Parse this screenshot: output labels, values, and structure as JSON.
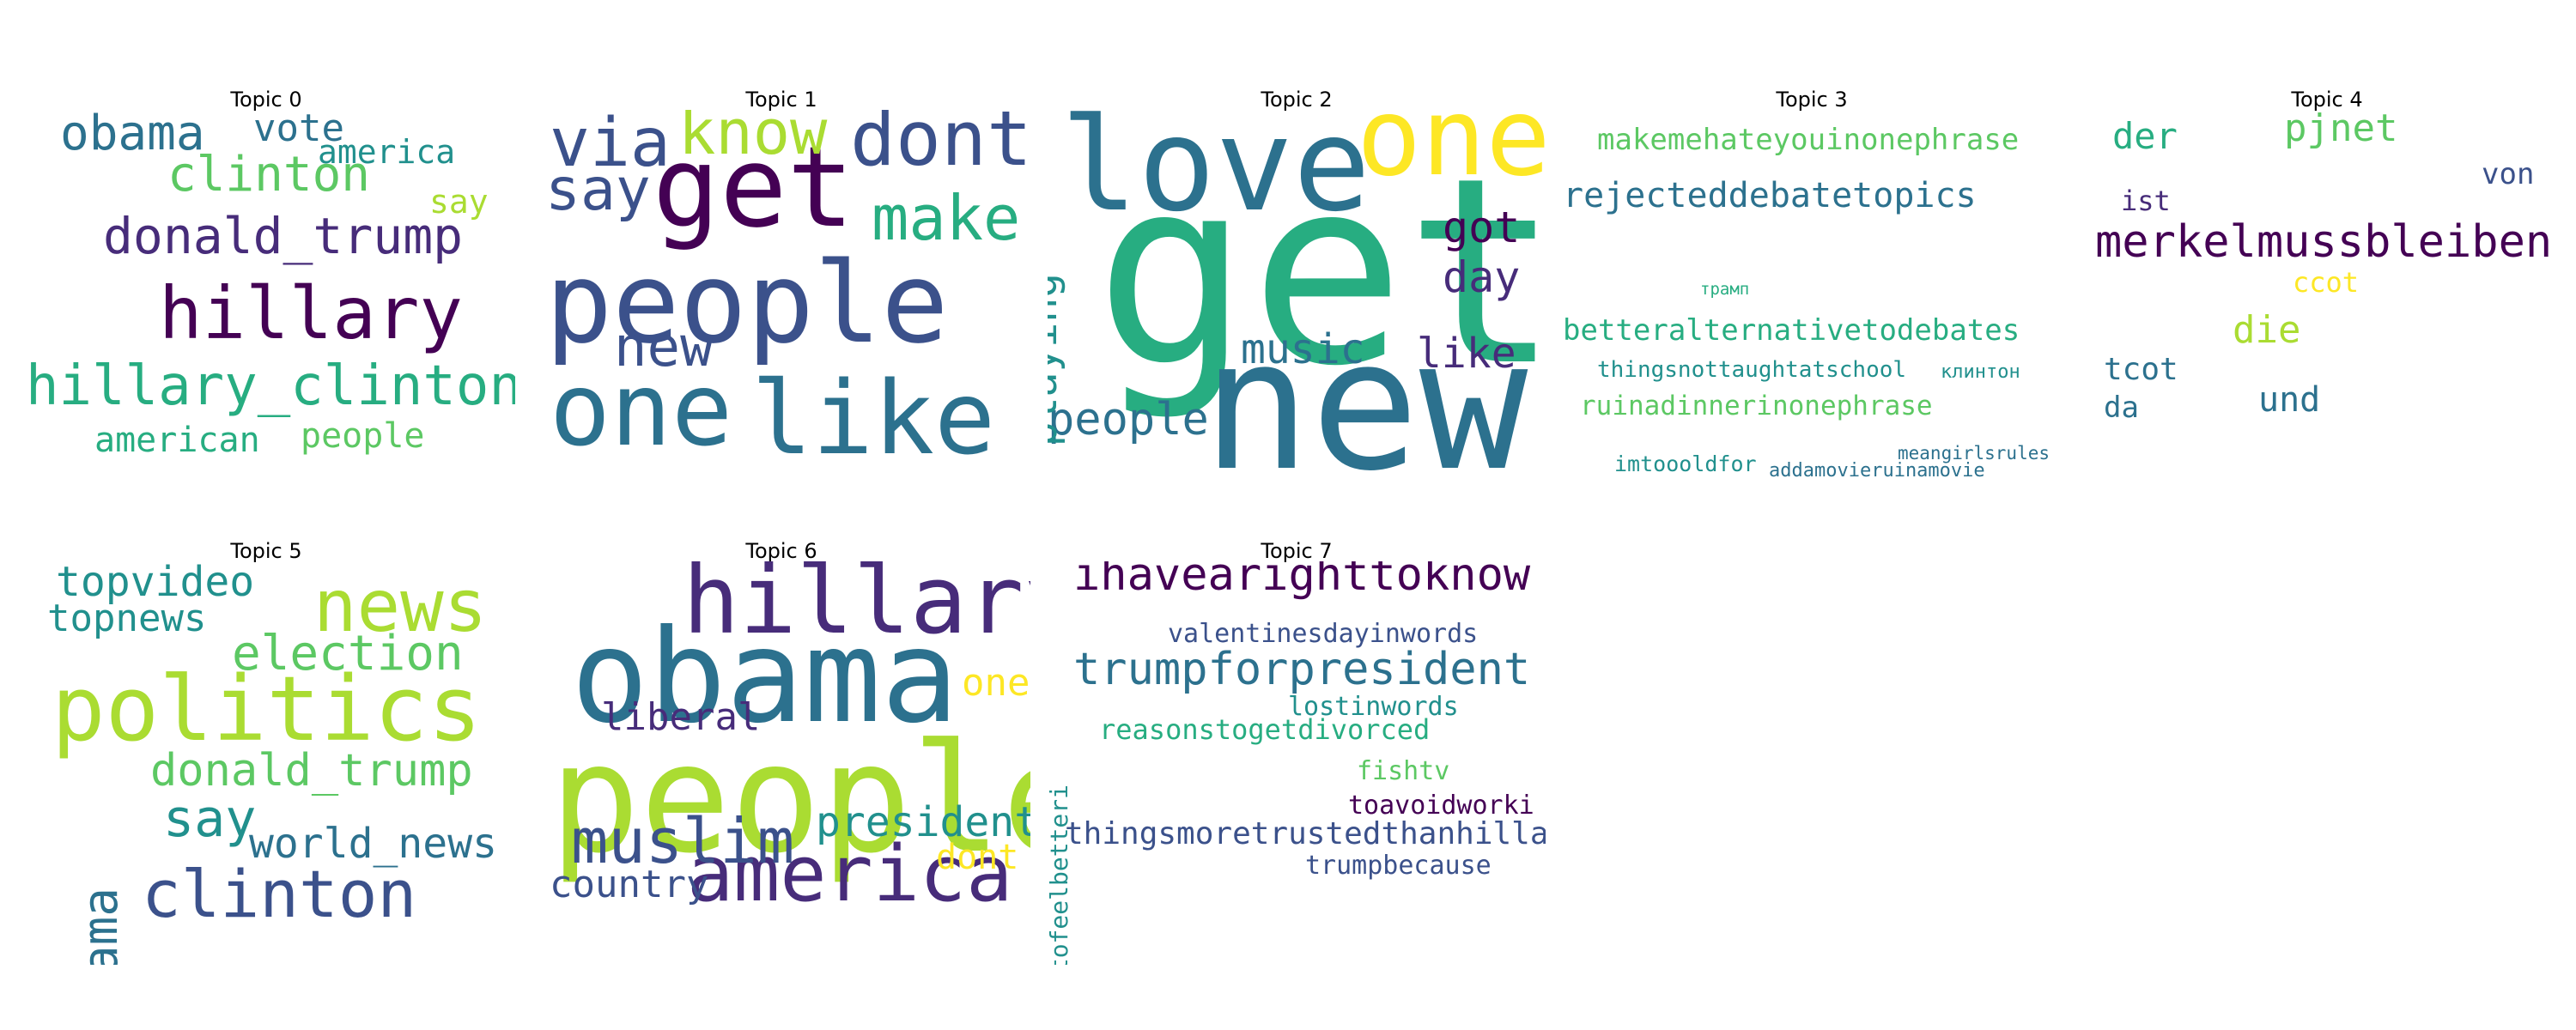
{
  "palette": [
    "#440154",
    "#472c7a",
    "#3b518b",
    "#2c718e",
    "#21908d",
    "#27ad81",
    "#5cc863",
    "#aadc32",
    "#fde725"
  ],
  "chart_data": {
    "type": "wordcloud",
    "panels": [
      {
        "title": "Topic 0",
        "words": [
          {
            "text": "hillary",
            "weight": 1.0
          },
          {
            "text": "hillary_clinton",
            "weight": 0.85
          },
          {
            "text": "donald_trump",
            "weight": 0.75
          },
          {
            "text": "clinton",
            "weight": 0.72
          },
          {
            "text": "obama",
            "weight": 0.68
          },
          {
            "text": "vote",
            "weight": 0.55
          },
          {
            "text": "american",
            "weight": 0.5
          },
          {
            "text": "people",
            "weight": 0.5
          },
          {
            "text": "america",
            "weight": 0.48
          },
          {
            "text": "say",
            "weight": 0.45
          }
        ]
      },
      {
        "title": "Topic 1",
        "words": [
          {
            "text": "people",
            "weight": 1.0
          },
          {
            "text": "get",
            "weight": 0.95
          },
          {
            "text": "one",
            "weight": 0.9
          },
          {
            "text": "like",
            "weight": 0.9
          },
          {
            "text": "dont",
            "weight": 0.7
          },
          {
            "text": "via",
            "weight": 0.62
          },
          {
            "text": "know",
            "weight": 0.58
          },
          {
            "text": "make",
            "weight": 0.55
          },
          {
            "text": "say",
            "weight": 0.52
          },
          {
            "text": "new",
            "weight": 0.5
          }
        ]
      },
      {
        "title": "Topic 2",
        "words": [
          {
            "text": "get",
            "weight": 1.0
          },
          {
            "text": "new",
            "weight": 0.95
          },
          {
            "text": "love",
            "weight": 0.7
          },
          {
            "text": "one",
            "weight": 0.68
          },
          {
            "text": "people",
            "weight": 0.35
          },
          {
            "text": "got",
            "weight": 0.33
          },
          {
            "text": "day",
            "weight": 0.33
          },
          {
            "text": "music",
            "weight": 0.3
          },
          {
            "text": "like",
            "weight": 0.3
          },
          {
            "text": "playing",
            "weight": 0.3
          }
        ]
      },
      {
        "title": "Topic 3",
        "words": [
          {
            "text": "rejecteddebatetopics",
            "weight": 1.0
          },
          {
            "text": "makemehateyouinonephrase",
            "weight": 0.85
          },
          {
            "text": "betteralternativetodebates",
            "weight": 0.85
          },
          {
            "text": "ruinadinnerinonephrase",
            "weight": 0.8
          },
          {
            "text": "thingsnottaughtatschool",
            "weight": 0.65
          },
          {
            "text": "imtoooldfor",
            "weight": 0.6
          },
          {
            "text": "клинтон",
            "weight": 0.55
          },
          {
            "text": "addamovieruinamovie",
            "weight": 0.55
          },
          {
            "text": "meangirlsrules",
            "weight": 0.5
          },
          {
            "text": "трамп",
            "weight": 0.45
          }
        ]
      },
      {
        "title": "Topic 4",
        "words": [
          {
            "text": "merkelmussbleiben",
            "weight": 1.0
          },
          {
            "text": "pjnet",
            "weight": 0.85
          },
          {
            "text": "der",
            "weight": 0.82
          },
          {
            "text": "die",
            "weight": 0.82
          },
          {
            "text": "und",
            "weight": 0.82
          },
          {
            "text": "tcot",
            "weight": 0.7
          },
          {
            "text": "von",
            "weight": 0.7
          },
          {
            "text": "da",
            "weight": 0.7
          },
          {
            "text": "ist",
            "weight": 0.65
          },
          {
            "text": "ccot",
            "weight": 0.65
          }
        ]
      },
      {
        "title": "Topic 5",
        "words": [
          {
            "text": "politics",
            "weight": 1.0
          },
          {
            "text": "news",
            "weight": 0.85
          },
          {
            "text": "clinton",
            "weight": 0.8
          },
          {
            "text": "obama",
            "weight": 0.68
          },
          {
            "text": "election",
            "weight": 0.62
          },
          {
            "text": "donald_trump",
            "weight": 0.62
          },
          {
            "text": "say",
            "weight": 0.6
          },
          {
            "text": "world_news",
            "weight": 0.58
          },
          {
            "text": "topvideo",
            "weight": 0.56
          },
          {
            "text": "topnews",
            "weight": 0.54
          }
        ]
      },
      {
        "title": "Topic 6",
        "words": [
          {
            "text": "people",
            "weight": 1.0
          },
          {
            "text": "obama",
            "weight": 0.95
          },
          {
            "text": "hillary",
            "weight": 0.75
          },
          {
            "text": "america",
            "weight": 0.72
          },
          {
            "text": "muslim",
            "weight": 0.55
          },
          {
            "text": "president",
            "weight": 0.45
          },
          {
            "text": "liberal",
            "weight": 0.42
          },
          {
            "text": "country",
            "weight": 0.4
          },
          {
            "text": "one",
            "weight": 0.4
          },
          {
            "text": "dont",
            "weight": 0.4
          }
        ]
      },
      {
        "title": "Topic 7",
        "words": [
          {
            "text": "trumpforpresident",
            "weight": 1.0
          },
          {
            "text": "ihavearighttoknow",
            "weight": 0.95
          },
          {
            "text": "thingsmoretrustedthanhillary",
            "weight": 0.7
          },
          {
            "text": "valentinesdayinwords",
            "weight": 0.6
          },
          {
            "text": "reasonstogetdivorced",
            "weight": 0.6
          },
          {
            "text": "tofeelbetteri",
            "weight": 0.6
          },
          {
            "text": "lostinwords",
            "weight": 0.58
          },
          {
            "text": "toavoidworki",
            "weight": 0.58
          },
          {
            "text": "trumpbecause",
            "weight": 0.58
          },
          {
            "text": "fishtv",
            "weight": 0.55
          }
        ]
      }
    ]
  }
}
